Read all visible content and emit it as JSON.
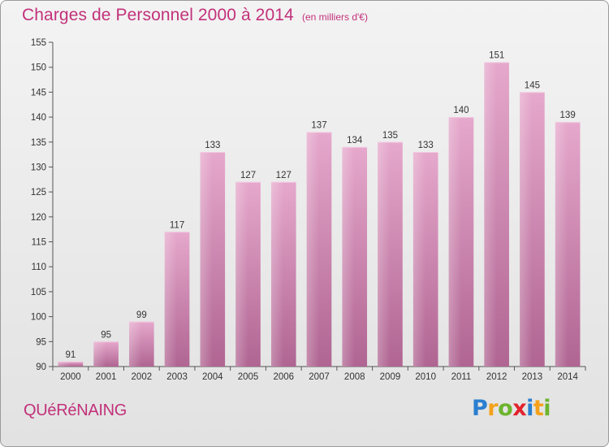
{
  "title": "Charges de Personnel 2000 à 2014",
  "subtitle": "(en milliers d'€)",
  "place": "QUéRéNAING",
  "logo": {
    "letters": [
      "P",
      "r",
      "o",
      "x",
      "i",
      "t",
      "i"
    ],
    "colors": [
      "#2a7fd0",
      "#f4a21b",
      "#6cb42d",
      "#e2222d",
      "#2a7fd0",
      "#f4a21b",
      "#6cb42d"
    ]
  },
  "chart_data": {
    "type": "bar",
    "categories": [
      "2000",
      "2001",
      "2002",
      "2003",
      "2004",
      "2005",
      "2006",
      "2007",
      "2008",
      "2009",
      "2010",
      "2011",
      "2012",
      "2013",
      "2014"
    ],
    "values": [
      91,
      95,
      99,
      117,
      133,
      127,
      127,
      137,
      134,
      135,
      133,
      140,
      151,
      145,
      139
    ],
    "ylim": [
      90,
      155
    ],
    "yticks": [
      90,
      95,
      100,
      105,
      110,
      115,
      120,
      125,
      130,
      135,
      140,
      145,
      150,
      155
    ],
    "grid": false,
    "bar_color": "#d67fb0"
  }
}
